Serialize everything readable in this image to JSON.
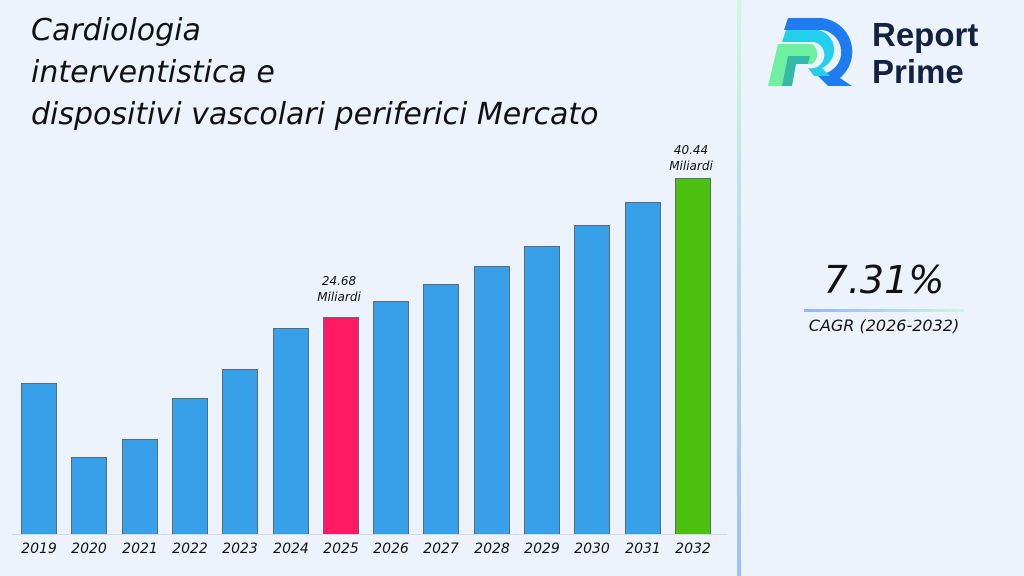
{
  "header": {
    "title": "Cardiologia\ninterventistica e\ndispositivi vascolari periferici Mercato"
  },
  "brand": {
    "name_line1": "Report",
    "name_line2": "Prime"
  },
  "cagr": {
    "value": "7.31%",
    "label": "CAGR (2026-2032)"
  },
  "annotations": {
    "a2025": {
      "value": "24.68",
      "unit": "Miliardi"
    },
    "a2032": {
      "value": "40.44",
      "unit": "Miliardi"
    }
  },
  "colors": {
    "default_bar": "#38a0e8",
    "highlight_2025": "#ff1a63",
    "highlight_2032": "#4cc00e"
  },
  "chart_data": {
    "type": "bar",
    "title": "Cardiologia interventistica e dispositivi vascolari periferici Mercato",
    "xlabel": "",
    "ylabel": "",
    "unit": "Miliardi",
    "categories": [
      "2019",
      "2020",
      "2021",
      "2022",
      "2023",
      "2024",
      "2025",
      "2026",
      "2027",
      "2028",
      "2029",
      "2030",
      "2031",
      "2032"
    ],
    "values": [
      17.1,
      8.8,
      10.8,
      15.4,
      18.8,
      23.4,
      24.68,
      26.48,
      28.42,
      30.5,
      32.73,
      35.12,
      37.68,
      40.44
    ],
    "colors": [
      "#38a0e8",
      "#38a0e8",
      "#38a0e8",
      "#38a0e8",
      "#38a0e8",
      "#38a0e8",
      "#ff1a63",
      "#38a0e8",
      "#38a0e8",
      "#38a0e8",
      "#38a0e8",
      "#38a0e8",
      "#38a0e8",
      "#4cc00e"
    ],
    "data_labels": {
      "2025": "24.68 Miliardi",
      "2032": "40.44 Miliardi"
    },
    "grid": false,
    "legend": "none",
    "cagr": "7.31% (2026-2032)"
  }
}
